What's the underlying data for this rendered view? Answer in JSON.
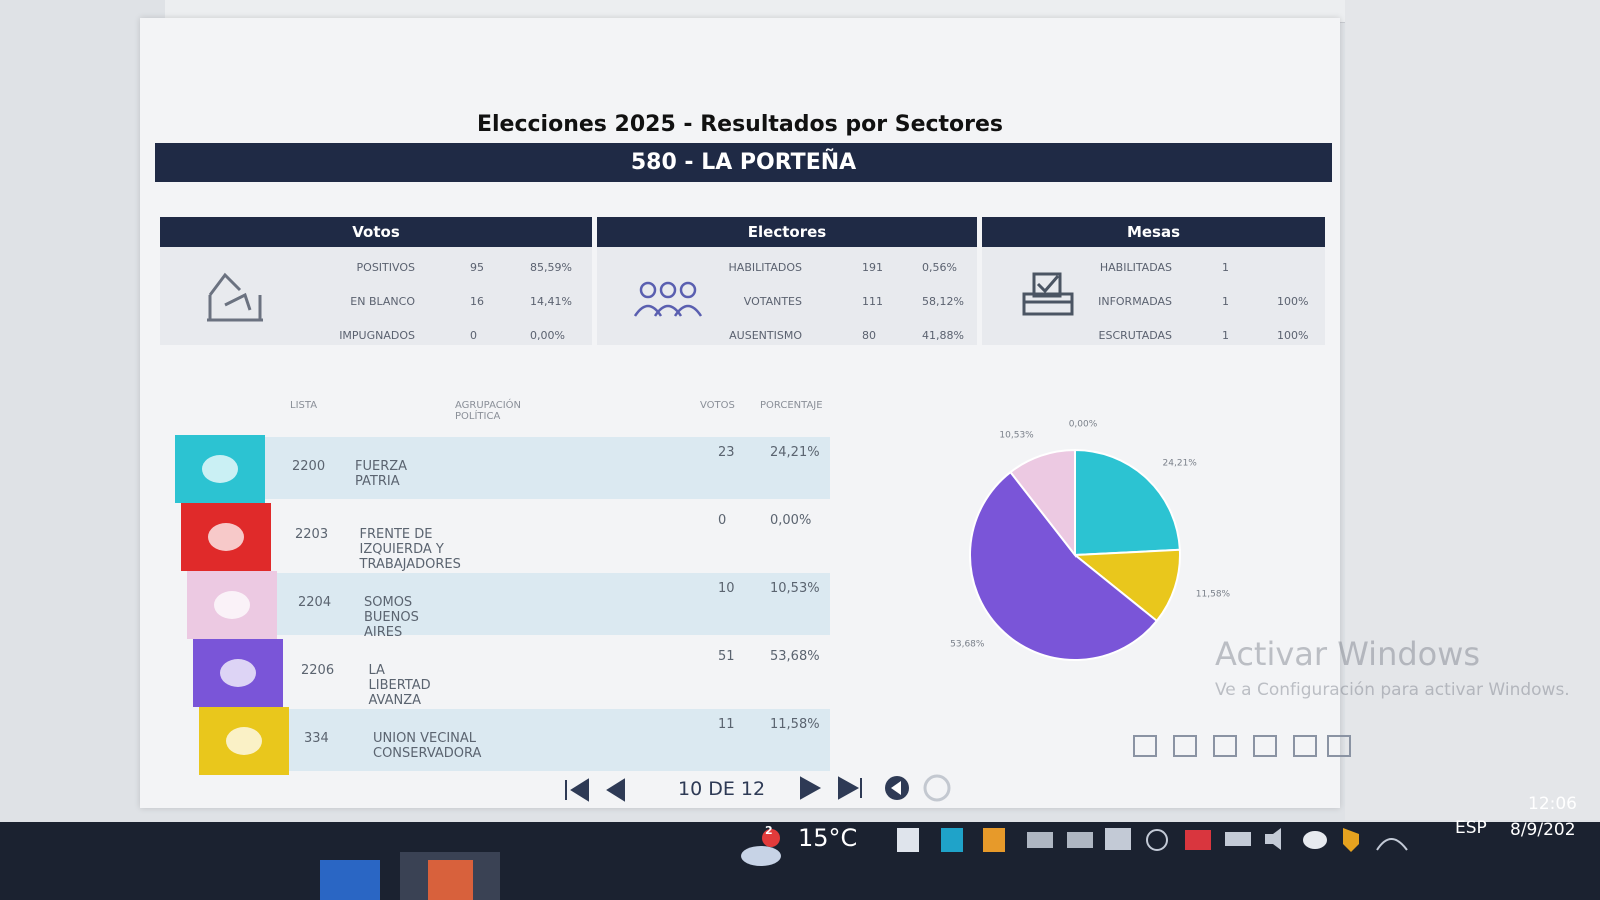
{
  "header": {
    "title": "Elecciones 2025 - Resultados por Sectores",
    "subtitle": "580 - LA PORTEÑA"
  },
  "summary": {
    "votos": {
      "title": "Votos",
      "rows": [
        [
          "POSITIVOS",
          "95",
          "85,59%"
        ],
        [
          "EN BLANCO",
          "16",
          "14,41%"
        ],
        [
          "IMPUGNADOS",
          "0",
          "0,00%"
        ]
      ]
    },
    "electores": {
      "title": "Electores",
      "rows": [
        [
          "HABILITADOS",
          "191",
          "0,56%"
        ],
        [
          "VOTANTES",
          "111",
          "58,12%"
        ],
        [
          "AUSENTISMO",
          "80",
          "41,88%"
        ]
      ]
    },
    "mesas": {
      "title": "Mesas",
      "rows": [
        [
          "HABILITADAS",
          "1"
        ],
        [
          "INFORMADAS",
          "1",
          "100%"
        ],
        [
          "ESCRUTADAS",
          "1",
          "100%"
        ]
      ]
    }
  },
  "table": {
    "headers": [
      "LISTA",
      "AGRUPACIÓN POLÍTICA",
      "VOTOS",
      "PORCENTAJE"
    ],
    "rows": [
      [
        "2200",
        "FUERZA PATRIA",
        "23",
        "24,21%"
      ],
      [
        "2203",
        "FRENTE DE IZQUIERDA Y TRABAJADORES",
        "0",
        "0,00%"
      ],
      [
        "2204",
        "SOMOS BUENOS AIRES",
        "10",
        "10,53%"
      ],
      [
        "2206",
        "LA LIBERTAD AVANZA",
        "51",
        "53,68%"
      ],
      [
        "334",
        "UNION VECINAL CONSERVADORA",
        "11",
        "11,58%"
      ]
    ],
    "row_colors": [
      "#2cc3d2",
      "#e02a2a",
      "#ecc9e2",
      "#7a55d8",
      "#e9c71c"
    ]
  },
  "chart_data": {
    "type": "pie",
    "values": [
      24.21,
      11.58,
      53.68,
      10.53,
      0.0
    ],
    "value_labels": [
      "24,21%",
      "11,58%",
      "53,68%",
      "10,53%",
      "0,00%"
    ],
    "colors": [
      "#2cc3d2",
      "#e9c71c",
      "#7a55d8",
      "#ecc9e2",
      "#e02a2a"
    ]
  },
  "pagination": {
    "page": "10 DE 12"
  },
  "watermark": {
    "title": "Activar Windows",
    "subtitle": "Ve a Configuración para activar Windows."
  },
  "taskbar": {
    "notification": "2",
    "weather": "15°C",
    "language": "ESP",
    "time": "12:06",
    "date": "8/9/202"
  }
}
